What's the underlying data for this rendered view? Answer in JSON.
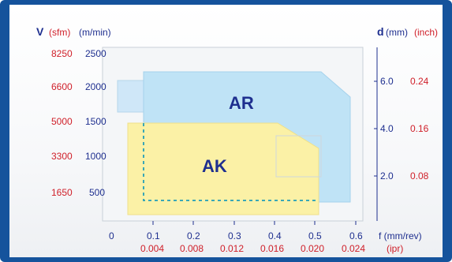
{
  "header": {
    "left": {
      "symbol": "V",
      "unit_a": "(sfm)",
      "unit_b": "(m/min)"
    },
    "right": {
      "symbol": "d",
      "unit_a": "(mm)",
      "unit_b": "(inch)"
    }
  },
  "colors": {
    "frame": "#15539c",
    "red": "#d0202a",
    "blue": "#1e2f8f",
    "ar_fill": "#bfe3f6",
    "ak_fill": "#fbf1a6",
    "dash": "#3aa7b6"
  },
  "chart_data": {
    "type": "area",
    "title": "",
    "y_left_sfm_ticks": [
      "8250",
      "6600",
      "5000",
      "3300",
      "1650"
    ],
    "y_left_m_min_ticks": [
      "2500",
      "2000",
      "1500",
      "1000",
      "500"
    ],
    "y_right_mm_ticks": [
      "6.0",
      "4.0",
      "2.0"
    ],
    "y_right_inch_ticks": [
      "0.24",
      "0.16",
      "0.08"
    ],
    "x_mm_rev_ticks": [
      "0",
      "0.1",
      "0.2",
      "0.3",
      "0.4",
      "0.5",
      "0.6"
    ],
    "x_ipr_ticks": [
      "0.004",
      "0.008",
      "0.012",
      "0.016",
      "0.020",
      "0.024"
    ],
    "x_label_a": "f (mm/rev)",
    "x_label_b": "(ipr)",
    "regions": [
      {
        "name": "AR",
        "x_range_mm_rev": [
          0.07,
          0.58
        ],
        "v_range_m_min": [
          100,
          2150
        ]
      },
      {
        "name": "AK",
        "x_range_mm_rev": [
          0.04,
          0.51
        ],
        "v_range_m_min": [
          50,
          1450
        ]
      }
    ]
  }
}
